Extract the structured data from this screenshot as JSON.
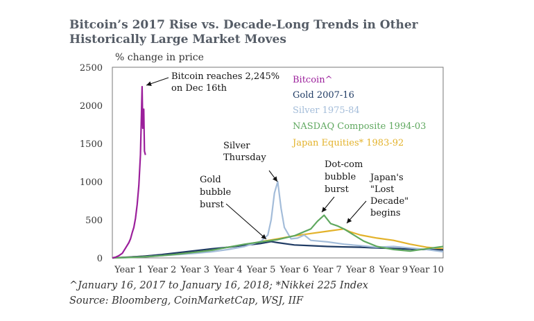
{
  "title": "Bitcoin’s 2017 Rise vs. Decade-Long Trends in Other Historically Large Market Moves",
  "unit_label": "% change in price",
  "notes": {
    "line1": "^January 16, 2017 to January 16, 2018; *Nikkei 225 Index",
    "line2": "Source: Bloomberg, CoinMarketCap, WSJ, IIF"
  },
  "chart_data": {
    "type": "line",
    "title": "Bitcoin’s 2017 Rise vs. Decade-Long Trends in Other Historically Large Market Moves",
    "ylabel": "% change in price",
    "xlabel": "",
    "ylim": [
      0,
      2500
    ],
    "xlim": [
      0,
      10
    ],
    "yticks": [
      0,
      500,
      1000,
      1500,
      2000,
      2500
    ],
    "xticks": [
      {
        "x": 0.5,
        "label": "Year 1"
      },
      {
        "x": 1.5,
        "label": "Year 2"
      },
      {
        "x": 2.5,
        "label": "Year 3"
      },
      {
        "x": 3.5,
        "label": "Year 4"
      },
      {
        "x": 4.5,
        "label": "Year 5"
      },
      {
        "x": 5.5,
        "label": "Year 6"
      },
      {
        "x": 6.5,
        "label": "Year 7"
      },
      {
        "x": 7.5,
        "label": "Year 8"
      },
      {
        "x": 8.5,
        "label": "Year 9"
      },
      {
        "x": 9.5,
        "label": "Year 10"
      }
    ],
    "grid": false,
    "legend_position": "top-right",
    "series": [
      {
        "name": "Bitcoin^",
        "color": "#9b1f9b",
        "points": [
          [
            0,
            0
          ],
          [
            0.1,
            10
          ],
          [
            0.2,
            30
          ],
          [
            0.3,
            60
          ],
          [
            0.4,
            130
          ],
          [
            0.5,
            200
          ],
          [
            0.55,
            250
          ],
          [
            0.6,
            330
          ],
          [
            0.65,
            400
          ],
          [
            0.7,
            520
          ],
          [
            0.75,
            700
          ],
          [
            0.8,
            950
          ],
          [
            0.85,
            1350
          ],
          [
            0.88,
            1900
          ],
          [
            0.9,
            2245
          ],
          [
            0.92,
            1700
          ],
          [
            0.95,
            1950
          ],
          [
            0.97,
            1400
          ],
          [
            1.0,
            1350
          ]
        ]
      },
      {
        "name": "Gold 2007-16",
        "color": "#1f3b64",
        "points": [
          [
            0,
            0
          ],
          [
            0.5,
            10
          ],
          [
            1,
            25
          ],
          [
            1.5,
            45
          ],
          [
            2,
            70
          ],
          [
            2.5,
            95
          ],
          [
            3,
            120
          ],
          [
            3.5,
            140
          ],
          [
            4,
            165
          ],
          [
            4.5,
            190
          ],
          [
            4.8,
            215
          ],
          [
            5,
            200
          ],
          [
            5.5,
            170
          ],
          [
            6,
            160
          ],
          [
            6.5,
            150
          ],
          [
            7,
            145
          ],
          [
            7.5,
            140
          ],
          [
            8,
            130
          ],
          [
            8.5,
            125
          ],
          [
            9,
            115
          ],
          [
            9.5,
            110
          ],
          [
            10,
            105
          ]
        ]
      },
      {
        "name": "Silver 1975-84",
        "color": "#a3bcd9",
        "points": [
          [
            0,
            0
          ],
          [
            0.5,
            5
          ],
          [
            1,
            15
          ],
          [
            1.5,
            30
          ],
          [
            2,
            45
          ],
          [
            2.5,
            60
          ],
          [
            3,
            80
          ],
          [
            3.5,
            110
          ],
          [
            4,
            150
          ],
          [
            4.5,
            220
          ],
          [
            4.7,
            300
          ],
          [
            4.8,
            500
          ],
          [
            4.9,
            850
          ],
          [
            5.0,
            1000
          ],
          [
            5.1,
            650
          ],
          [
            5.2,
            400
          ],
          [
            5.4,
            250
          ],
          [
            5.6,
            260
          ],
          [
            5.8,
            300
          ],
          [
            6,
            230
          ],
          [
            6.5,
            210
          ],
          [
            7,
            180
          ],
          [
            7.5,
            160
          ],
          [
            8,
            140
          ],
          [
            8.5,
            150
          ],
          [
            9,
            130
          ],
          [
            9.5,
            110
          ],
          [
            10,
            80
          ]
        ]
      },
      {
        "name": "NASDAQ Composite 1994-03",
        "color": "#5fa85f",
        "points": [
          [
            0,
            0
          ],
          [
            0.5,
            5
          ],
          [
            1,
            15
          ],
          [
            1.5,
            30
          ],
          [
            2,
            50
          ],
          [
            2.5,
            75
          ],
          [
            3,
            100
          ],
          [
            3.5,
            140
          ],
          [
            4,
            180
          ],
          [
            4.5,
            210
          ],
          [
            5,
            240
          ],
          [
            5.5,
            290
          ],
          [
            6,
            380
          ],
          [
            6.2,
            480
          ],
          [
            6.4,
            560
          ],
          [
            6.6,
            450
          ],
          [
            6.8,
            420
          ],
          [
            7,
            380
          ],
          [
            7.3,
            300
          ],
          [
            7.6,
            220
          ],
          [
            8,
            150
          ],
          [
            8.5,
            110
          ],
          [
            9,
            90
          ],
          [
            9.5,
            120
          ],
          [
            10,
            150
          ]
        ]
      },
      {
        "name": "Japan Equities* 1983-92",
        "color": "#e3b22a",
        "points": [
          [
            0,
            0
          ],
          [
            0.5,
            10
          ],
          [
            1,
            25
          ],
          [
            1.5,
            40
          ],
          [
            2,
            60
          ],
          [
            2.5,
            85
          ],
          [
            3,
            110
          ],
          [
            3.5,
            140
          ],
          [
            4,
            175
          ],
          [
            4.5,
            215
          ],
          [
            5,
            250
          ],
          [
            5.5,
            290
          ],
          [
            6,
            320
          ],
          [
            6.5,
            350
          ],
          [
            7,
            380
          ],
          [
            7.2,
            340
          ],
          [
            7.5,
            300
          ],
          [
            8,
            260
          ],
          [
            8.5,
            230
          ],
          [
            9,
            180
          ],
          [
            9.5,
            140
          ],
          [
            10,
            120
          ]
        ]
      }
    ],
    "annotations": [
      {
        "lines": [
          "Bitcoin reaches 2,245%",
          "on Dec 16th"
        ]
      },
      {
        "lines": [
          "Silver",
          "Thursday"
        ]
      },
      {
        "lines": [
          "Gold",
          "bubble",
          "burst"
        ]
      },
      {
        "lines": [
          "Dot-com",
          "bubble",
          "burst"
        ]
      },
      {
        "lines": [
          "Japan's",
          "\"Lost",
          "Decade\"",
          "begins"
        ]
      }
    ]
  }
}
